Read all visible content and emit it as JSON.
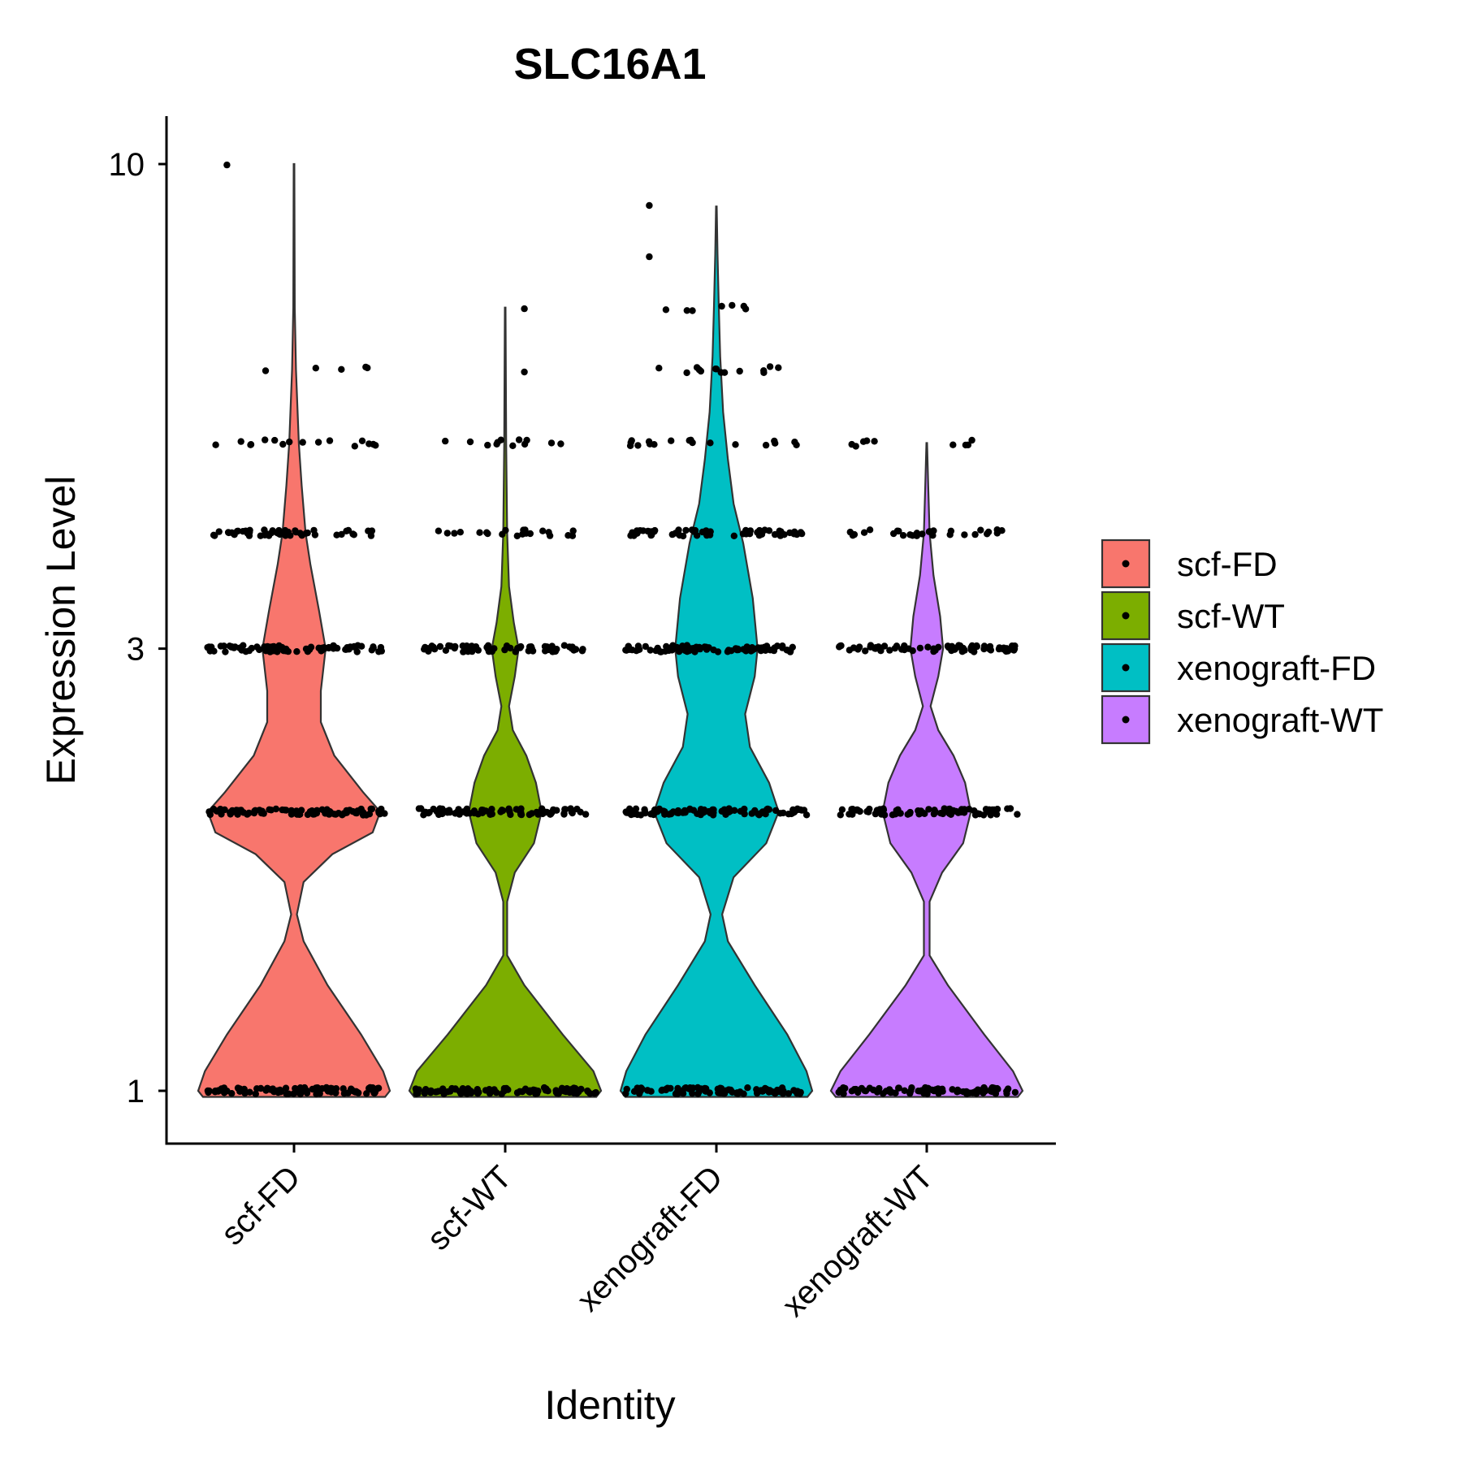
{
  "chart_data": {
    "type": "violin",
    "title": "SLC16A1",
    "xlabel": "Identity",
    "ylabel": "Expression Level",
    "y_scale": "log",
    "ylim": [
      0.9,
      11
    ],
    "y_ticks": [
      1,
      3,
      10
    ],
    "y_tick_labels": [
      "1",
      "3",
      "10"
    ],
    "categories": [
      "scf-FD",
      "scf-WT",
      "xenograft-FD",
      "xenograft-WT"
    ],
    "legend": {
      "position": "right",
      "entries": [
        "scf-FD",
        "scf-WT",
        "xenograft-FD",
        "xenograft-WT"
      ]
    },
    "colors": [
      "#F8766D",
      "#7CAE00",
      "#00BFC4",
      "#C77CFF"
    ],
    "series": [
      {
        "name": "scf-FD",
        "max": 10,
        "density": [
          [
            0.985,
            0.95
          ],
          [
            1.0,
            1.0
          ],
          [
            1.05,
            0.93
          ],
          [
            1.15,
            0.7
          ],
          [
            1.3,
            0.35
          ],
          [
            1.45,
            0.1
          ],
          [
            1.55,
            0.03
          ],
          [
            1.68,
            0.1
          ],
          [
            1.8,
            0.4
          ],
          [
            1.9,
            0.82
          ],
          [
            2.0,
            0.9
          ],
          [
            2.1,
            0.72
          ],
          [
            2.3,
            0.42
          ],
          [
            2.5,
            0.28
          ],
          [
            2.7,
            0.28
          ],
          [
            3.0,
            0.33
          ],
          [
            3.3,
            0.26
          ],
          [
            3.7,
            0.17
          ],
          [
            4.0,
            0.12
          ],
          [
            4.5,
            0.08
          ],
          [
            5.0,
            0.05
          ],
          [
            6.0,
            0.02
          ],
          [
            7.0,
            0.008
          ],
          [
            10,
            0.003
          ]
        ],
        "dot_levels": [
          {
            "value": 1,
            "n": 90,
            "spread": 0.95
          },
          {
            "value": 2,
            "n": 90,
            "spread": 0.95
          },
          {
            "value": 3,
            "n": 80,
            "spread": 0.92
          },
          {
            "value": 4,
            "n": 50,
            "spread": 0.85
          },
          {
            "value": 5,
            "n": 16,
            "spread": 0.85
          },
          {
            "value": 6,
            "n": 5,
            "spread": 0.8
          },
          {
            "value": 10,
            "n": 1,
            "spread": 0.7
          }
        ]
      },
      {
        "name": "scf-WT",
        "max": 7,
        "density": [
          [
            0.985,
            0.95
          ],
          [
            1.0,
            1.0
          ],
          [
            1.05,
            0.92
          ],
          [
            1.15,
            0.6
          ],
          [
            1.3,
            0.2
          ],
          [
            1.4,
            0.02
          ],
          [
            1.6,
            0.02
          ],
          [
            1.72,
            0.1
          ],
          [
            1.85,
            0.3
          ],
          [
            2.0,
            0.38
          ],
          [
            2.15,
            0.32
          ],
          [
            2.3,
            0.22
          ],
          [
            2.45,
            0.08
          ],
          [
            2.6,
            0.04
          ],
          [
            2.8,
            0.1
          ],
          [
            3.0,
            0.14
          ],
          [
            3.2,
            0.09
          ],
          [
            3.5,
            0.04
          ],
          [
            4.0,
            0.02
          ],
          [
            5.0,
            0.01
          ],
          [
            7.0,
            0.003
          ]
        ],
        "dot_levels": [
          {
            "value": 1,
            "n": 90,
            "spread": 0.95
          },
          {
            "value": 2,
            "n": 75,
            "spread": 0.9
          },
          {
            "value": 3,
            "n": 65,
            "spread": 0.88
          },
          {
            "value": 4,
            "n": 22,
            "spread": 0.75
          },
          {
            "value": 5,
            "n": 12,
            "spread": 0.7
          },
          {
            "value": 6,
            "n": 1,
            "spread": 0.4
          },
          {
            "value": 7,
            "n": 1,
            "spread": 0.3
          }
        ]
      },
      {
        "name": "xenograft-FD",
        "max": 9,
        "density": [
          [
            0.985,
            0.95
          ],
          [
            1.0,
            1.0
          ],
          [
            1.05,
            0.94
          ],
          [
            1.15,
            0.74
          ],
          [
            1.3,
            0.4
          ],
          [
            1.45,
            0.12
          ],
          [
            1.55,
            0.06
          ],
          [
            1.7,
            0.18
          ],
          [
            1.85,
            0.52
          ],
          [
            2.0,
            0.65
          ],
          [
            2.15,
            0.55
          ],
          [
            2.35,
            0.35
          ],
          [
            2.55,
            0.3
          ],
          [
            2.8,
            0.4
          ],
          [
            3.0,
            0.43
          ],
          [
            3.4,
            0.38
          ],
          [
            3.9,
            0.28
          ],
          [
            4.3,
            0.18
          ],
          [
            4.8,
            0.12
          ],
          [
            5.4,
            0.07
          ],
          [
            6.2,
            0.04
          ],
          [
            7.0,
            0.025
          ],
          [
            8.0,
            0.012
          ],
          [
            9.0,
            0.003
          ]
        ],
        "dot_levels": [
          {
            "value": 1,
            "n": 90,
            "spread": 0.95
          },
          {
            "value": 2,
            "n": 90,
            "spread": 0.95
          },
          {
            "value": 3,
            "n": 85,
            "spread": 0.95
          },
          {
            "value": 4,
            "n": 60,
            "spread": 0.9
          },
          {
            "value": 5,
            "n": 18,
            "spread": 0.9
          },
          {
            "value": 6,
            "n": 14,
            "spread": 0.75
          },
          {
            "value": 7,
            "n": 7,
            "spread": 0.7
          },
          {
            "value": 8,
            "n": 1,
            "spread": 0.4
          },
          {
            "value": 9,
            "n": 1,
            "spread": 0.4
          }
        ]
      },
      {
        "name": "xenograft-WT",
        "max": 5,
        "density": [
          [
            0.985,
            0.95
          ],
          [
            1.0,
            1.0
          ],
          [
            1.05,
            0.9
          ],
          [
            1.15,
            0.6
          ],
          [
            1.3,
            0.22
          ],
          [
            1.4,
            0.03
          ],
          [
            1.6,
            0.03
          ],
          [
            1.72,
            0.16
          ],
          [
            1.85,
            0.38
          ],
          [
            2.0,
            0.46
          ],
          [
            2.15,
            0.4
          ],
          [
            2.3,
            0.28
          ],
          [
            2.45,
            0.12
          ],
          [
            2.6,
            0.04
          ],
          [
            2.8,
            0.12
          ],
          [
            3.0,
            0.17
          ],
          [
            3.25,
            0.14
          ],
          [
            3.6,
            0.07
          ],
          [
            4.0,
            0.03
          ],
          [
            4.5,
            0.015
          ],
          [
            5.0,
            0.003
          ]
        ],
        "dot_levels": [
          {
            "value": 1,
            "n": 90,
            "spread": 0.95
          },
          {
            "value": 2,
            "n": 80,
            "spread": 0.95
          },
          {
            "value": 3,
            "n": 70,
            "spread": 0.92
          },
          {
            "value": 4,
            "n": 28,
            "spread": 0.85
          },
          {
            "value": 5,
            "n": 9,
            "spread": 0.8
          }
        ]
      }
    ]
  }
}
